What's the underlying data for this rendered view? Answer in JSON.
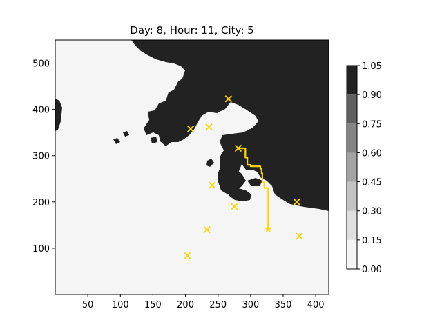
{
  "chart_data": {
    "type": "heatmap",
    "title": "Day: 8, Hour: 11, City: 5",
    "xlabel": "",
    "ylabel": "",
    "xlim": [
      0,
      420
    ],
    "ylim": [
      0,
      550
    ],
    "x_ticks": [
      50,
      100,
      150,
      200,
      250,
      300,
      350,
      400
    ],
    "y_ticks": [
      100,
      200,
      300,
      400,
      500
    ],
    "grid": false,
    "colormap": {
      "levels": [
        0.0,
        0.15,
        0.3,
        0.45,
        0.6,
        0.75,
        0.9,
        1.05
      ],
      "tick_labels": [
        "0.00",
        "0.15",
        "0.30",
        "0.45",
        "0.60",
        "0.75",
        "0.90",
        "1.05"
      ],
      "colors": [
        "#f5f5f5",
        "#dfdfdf",
        "#c3c3c3",
        "#a3a3a3",
        "#848484",
        "#5f5f5f",
        "#222222"
      ]
    },
    "background_value_color": "#f5f5f5",
    "landmass_color": "#222222",
    "cities": [
      {
        "x": 203,
        "y": 84
      },
      {
        "x": 233,
        "y": 140
      },
      {
        "x": 241,
        "y": 236
      },
      {
        "x": 275,
        "y": 190
      },
      {
        "x": 208,
        "y": 358
      },
      {
        "x": 236,
        "y": 362
      },
      {
        "x": 266,
        "y": 423
      },
      {
        "x": 281,
        "y": 316
      },
      {
        "x": 371,
        "y": 200
      },
      {
        "x": 375,
        "y": 126
      }
    ],
    "city_marker_color": "#ffd700",
    "path": {
      "color": "#ffd700",
      "points": [
        [
          281,
          316
        ],
        [
          292,
          316
        ],
        [
          292,
          296
        ],
        [
          295,
          296
        ],
        [
          295,
          280
        ],
        [
          300,
          280
        ],
        [
          300,
          277
        ],
        [
          315,
          277
        ],
        [
          315,
          272
        ],
        [
          317,
          272
        ],
        [
          317,
          262
        ],
        [
          318,
          262
        ],
        [
          318,
          242
        ],
        [
          321,
          242
        ],
        [
          321,
          230
        ],
        [
          327,
          230
        ],
        [
          327,
          142
        ]
      ],
      "end_marker": "star",
      "end": {
        "x": 327,
        "y": 142
      }
    }
  }
}
